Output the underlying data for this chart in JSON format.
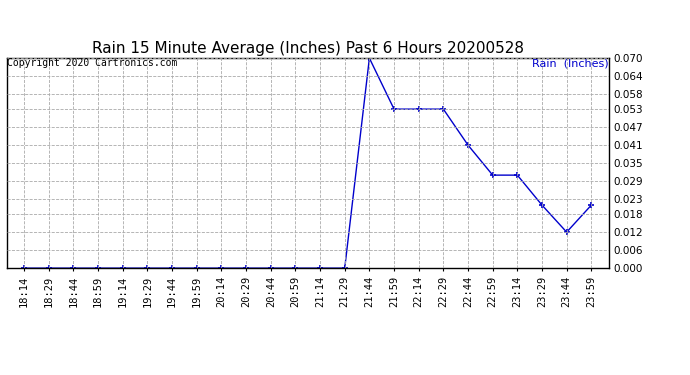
{
  "title": "Rain 15 Minute Average (Inches) Past 6 Hours 20200528",
  "copyright": "Copyright 2020 Cartronics.com",
  "legend_label": "Rain  (Inches)",
  "x_labels": [
    "18:14",
    "18:29",
    "18:44",
    "18:59",
    "19:14",
    "19:29",
    "19:44",
    "19:59",
    "20:14",
    "20:29",
    "20:44",
    "20:59",
    "21:14",
    "21:29",
    "21:44",
    "21:59",
    "22:14",
    "22:29",
    "22:44",
    "22:59",
    "23:14",
    "23:29",
    "23:44",
    "23:59"
  ],
  "y_values": [
    0.0,
    0.0,
    0.0,
    0.0,
    0.0,
    0.0,
    0.0,
    0.0,
    0.0,
    0.0,
    0.0,
    0.0,
    0.0,
    0.0,
    0.07,
    0.053,
    0.053,
    0.053,
    0.041,
    0.031,
    0.031,
    0.021,
    0.012,
    0.021
  ],
  "ylim": [
    0.0,
    0.07
  ],
  "yticks": [
    0.0,
    0.006,
    0.012,
    0.018,
    0.023,
    0.029,
    0.035,
    0.041,
    0.047,
    0.053,
    0.058,
    0.064,
    0.07
  ],
  "line_color": "#0000cc",
  "marker": "+",
  "marker_size": 5,
  "marker_linewidth": 1.2,
  "line_width": 1.0,
  "title_fontsize": 11,
  "tick_fontsize": 7.5,
  "copyright_fontsize": 7,
  "legend_fontsize": 8,
  "grid_color": "#aaaaaa",
  "grid_style": "--",
  "grid_linewidth": 0.6,
  "background_color": "#ffffff",
  "text_color": "#000000"
}
